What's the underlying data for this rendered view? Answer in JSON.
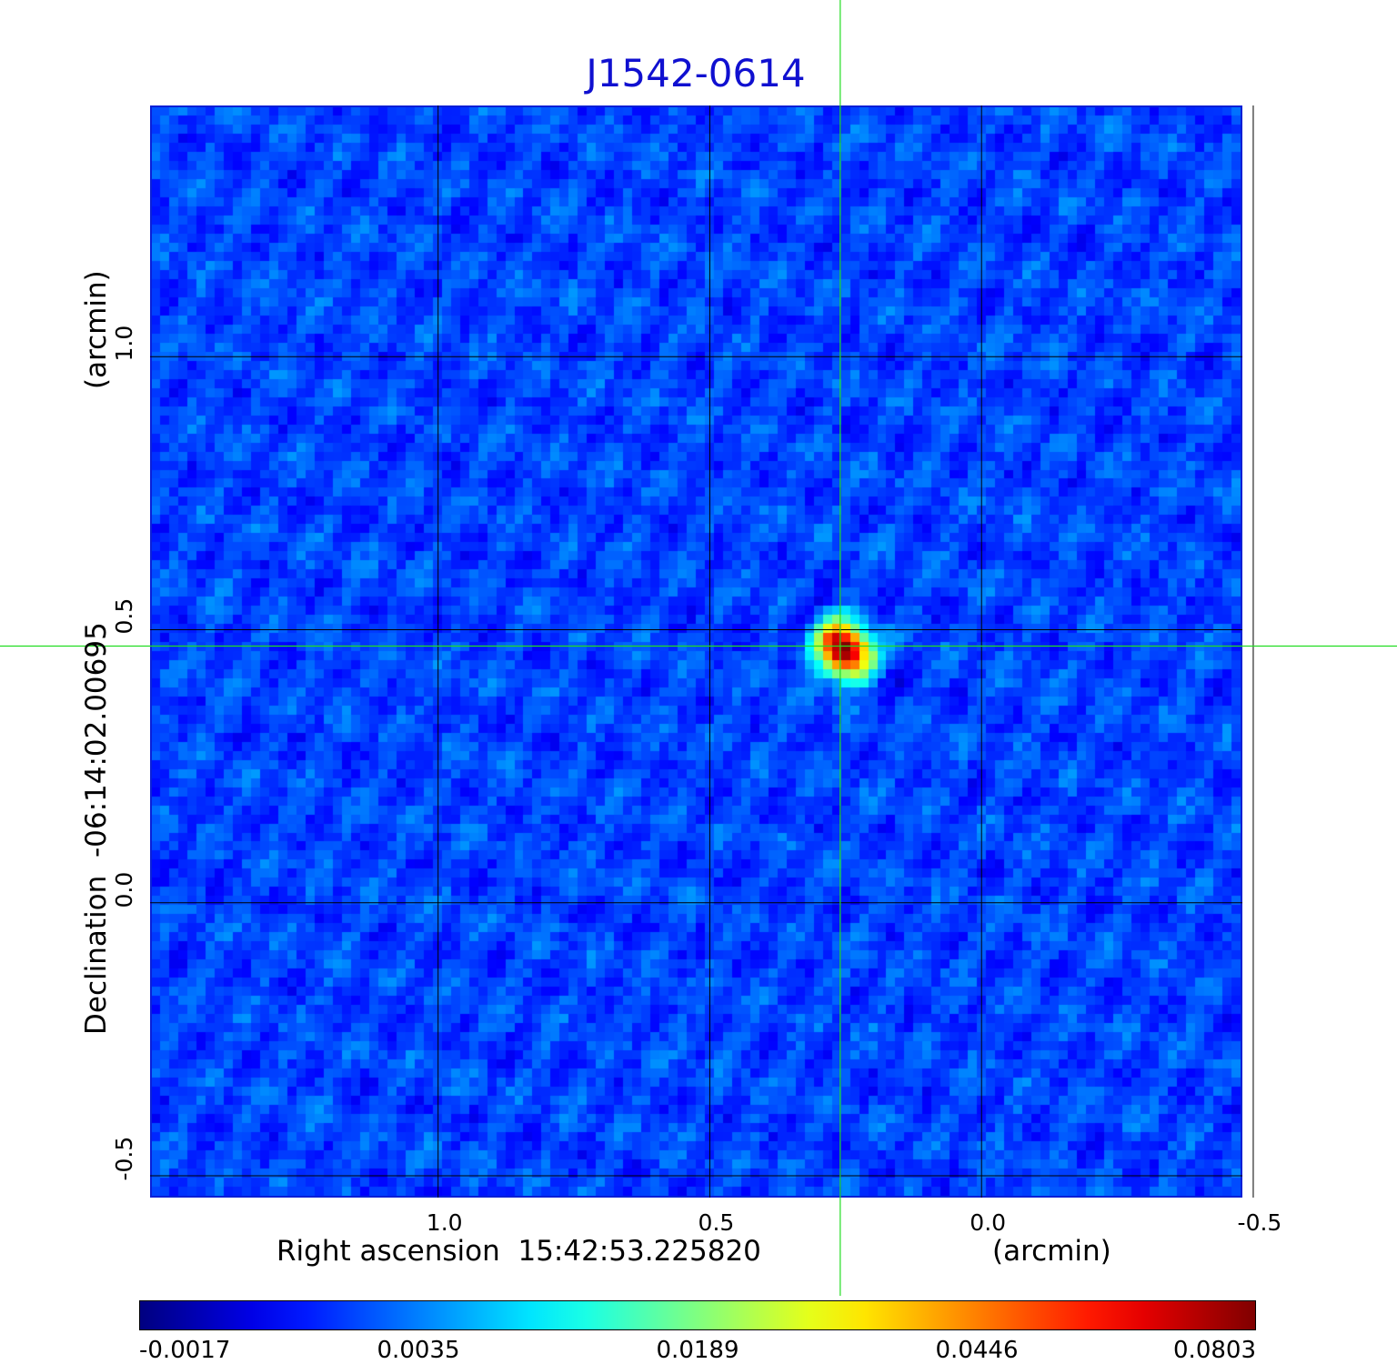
{
  "chart_data": {
    "type": "heatmap",
    "title": "J1542-0614",
    "xlabel": "Right ascension  15:42:53.225820",
    "xunit": "(arcmin)",
    "ylabel": "Declination  -06:14:02.00695",
    "yunit": "(arcmin)",
    "xlim": [
      1.53,
      -0.48
    ],
    "ylim": [
      -0.54,
      1.46
    ],
    "x_ticks": [
      {
        "value": 1.0,
        "label": "1.0"
      },
      {
        "value": 0.5,
        "label": "0.5"
      },
      {
        "value": 0.0,
        "label": "0.0"
      },
      {
        "value": -0.5,
        "label": "-0.5"
      }
    ],
    "y_ticks": [
      {
        "value": -0.5,
        "label": "-0.5"
      },
      {
        "value": 0.0,
        "label": "0.0"
      },
      {
        "value": 0.5,
        "label": "0.5"
      },
      {
        "value": 1.0,
        "label": "1.0"
      }
    ],
    "grid": true,
    "crosshair": {
      "x": 0.26,
      "y": 0.47,
      "color": "#22dd22"
    },
    "source": {
      "x": 0.26,
      "y": 0.47,
      "peak": 0.0803
    },
    "colormap": "jet",
    "colorbar": {
      "min": -0.0017,
      "max": 0.0803,
      "ticks": [
        "-0.0017",
        "0.0035",
        "0.0189",
        "0.0446",
        "0.0803"
      ],
      "placement": "bottom"
    }
  }
}
